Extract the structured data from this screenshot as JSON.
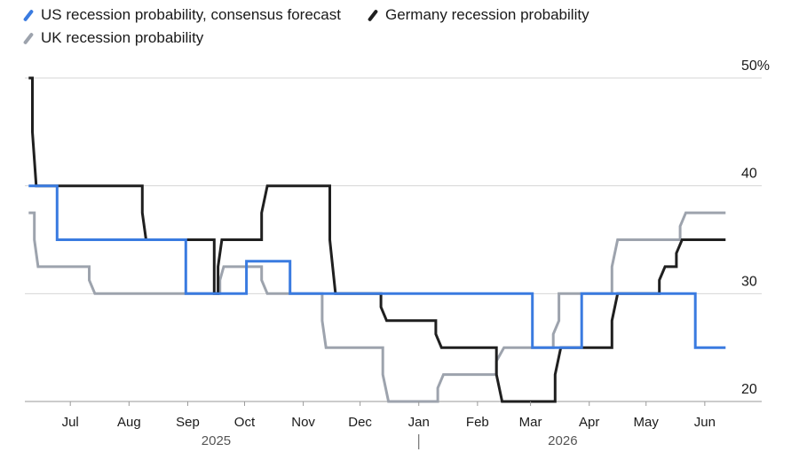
{
  "legend": [
    {
      "label": "US recession probability, consensus forecast",
      "color": "#3a7be0"
    },
    {
      "label": "Germany recession probability",
      "color": "#1f1f1f"
    },
    {
      "label": "UK recession probability",
      "color": "#9da3ad"
    }
  ],
  "chart_data": {
    "type": "line",
    "ylim": [
      20,
      50
    ],
    "ytick_values": [
      50,
      40,
      30,
      20
    ],
    "ytick_labels": [
      "50%",
      "40",
      "30",
      "20"
    ],
    "xlim": [
      "2025-06-07",
      "2026-06-17"
    ],
    "x_ticks": [
      {
        "date": "2025-07-01",
        "label": "Jul"
      },
      {
        "date": "2025-08-01",
        "label": "Aug"
      },
      {
        "date": "2025-09-01",
        "label": "Sep"
      },
      {
        "date": "2025-10-01",
        "label": "Oct"
      },
      {
        "date": "2025-11-01",
        "label": "Nov"
      },
      {
        "date": "2025-12-01",
        "label": "Dec"
      },
      {
        "date": "2026-01-01",
        "label": "Jan"
      },
      {
        "date": "2026-02-01",
        "label": "Feb"
      },
      {
        "date": "2026-03-01",
        "label": "Mar"
      },
      {
        "date": "2026-04-01",
        "label": "Apr"
      },
      {
        "date": "2026-05-01",
        "label": "May"
      },
      {
        "date": "2026-06-01",
        "label": "Jun"
      }
    ],
    "year_labels": [
      {
        "date": "2025-09-16",
        "label": "2025"
      },
      {
        "date": "2026-03-18",
        "label": "2026"
      }
    ],
    "year_divider": "2026-01-01",
    "grid": true,
    "legend_position": "top",
    "series": [
      {
        "name": "US recession probability, consensus forecast",
        "color": "#3a7be0",
        "x": [
          "2025-06-09",
          "2025-06-24",
          "2025-06-24",
          "2025-08-31",
          "2025-08-31",
          "2025-09-29",
          "2025-09-29",
          "2025-10-02",
          "2025-10-02",
          "2025-10-25",
          "2025-10-25",
          "2026-03-02",
          "2026-03-02",
          "2026-03-28",
          "2026-03-28",
          "2026-05-27",
          "2026-05-27",
          "2026-06-12"
        ],
        "y": [
          40,
          40,
          35,
          35,
          30,
          30,
          30,
          30,
          33,
          33,
          30,
          30,
          25,
          25,
          30,
          30,
          25,
          25
        ]
      },
      {
        "name": "Germany recession probability",
        "color": "#1f1f1f",
        "x": [
          "2025-06-09",
          "2025-06-11",
          "2025-06-11",
          "2025-06-13",
          "2025-06-13",
          "2025-08-08",
          "2025-08-08",
          "2025-08-10",
          "2025-08-10",
          "2025-09-15",
          "2025-09-15",
          "2025-09-17",
          "2025-09-17",
          "2025-09-19",
          "2025-09-19",
          "2025-10-10",
          "2025-10-10",
          "2025-10-13",
          "2025-10-13",
          "2025-11-15",
          "2025-11-15",
          "2025-11-18",
          "2025-11-18",
          "2025-12-12",
          "2025-12-12",
          "2025-12-15",
          "2025-12-15",
          "2026-01-10",
          "2026-01-10",
          "2026-01-13",
          "2026-01-13",
          "2026-02-11",
          "2026-02-11",
          "2026-02-14",
          "2026-02-14",
          "2026-03-14",
          "2026-03-14",
          "2026-03-17",
          "2026-03-17",
          "2026-04-13",
          "2026-04-13",
          "2026-04-16",
          "2026-04-16",
          "2026-05-08",
          "2026-05-08",
          "2026-05-11",
          "2026-05-11",
          "2026-05-17",
          "2026-05-17",
          "2026-05-20",
          "2026-05-20",
          "2026-06-12"
        ],
        "y": [
          50,
          50,
          45,
          40,
          40,
          40,
          37.5,
          35,
          35,
          35,
          30,
          30,
          32.5,
          35,
          35,
          35,
          37.5,
          40,
          40,
          40,
          35,
          30,
          30,
          30,
          28.75,
          27.5,
          27.5,
          27.5,
          26.25,
          25,
          25,
          25,
          22.5,
          20,
          20,
          20,
          22.5,
          25,
          25,
          25,
          27.5,
          30,
          30,
          30,
          31.25,
          32.5,
          32.5,
          32.5,
          33.75,
          35,
          35,
          35
        ]
      },
      {
        "name": "UK recession probability",
        "color": "#9da3ad",
        "x": [
          "2025-06-09",
          "2025-06-12",
          "2025-06-12",
          "2025-06-14",
          "2025-06-14",
          "2025-07-11",
          "2025-07-11",
          "2025-07-14",
          "2025-07-14",
          "2025-09-18",
          "2025-09-18",
          "2025-09-20",
          "2025-09-20",
          "2025-10-10",
          "2025-10-10",
          "2025-10-13",
          "2025-10-13",
          "2025-11-11",
          "2025-11-11",
          "2025-11-13",
          "2025-11-13",
          "2025-12-13",
          "2025-12-13",
          "2025-12-16",
          "2025-12-16",
          "2026-01-11",
          "2026-01-11",
          "2026-01-14",
          "2026-01-14",
          "2026-02-11",
          "2026-02-11",
          "2026-02-15",
          "2026-02-15",
          "2026-03-13",
          "2026-03-13",
          "2026-03-16",
          "2026-03-16",
          "2026-04-13",
          "2026-04-13",
          "2026-04-16",
          "2026-04-16",
          "2026-05-19",
          "2026-05-19",
          "2026-05-22",
          "2026-05-22",
          "2026-06-12"
        ],
        "y": [
          37.5,
          37.5,
          35,
          32.5,
          32.5,
          32.5,
          31.25,
          30,
          30,
          30,
          31.25,
          32.5,
          32.5,
          32.5,
          31.25,
          30,
          30,
          30,
          27.5,
          25,
          25,
          25,
          22.5,
          20,
          20,
          20,
          21.25,
          22.5,
          22.5,
          22.5,
          23.75,
          25,
          25,
          25,
          26.25,
          27.5,
          30,
          30,
          32.5,
          35,
          35,
          35,
          36.25,
          37.5,
          37.5,
          37.5
        ]
      }
    ]
  }
}
